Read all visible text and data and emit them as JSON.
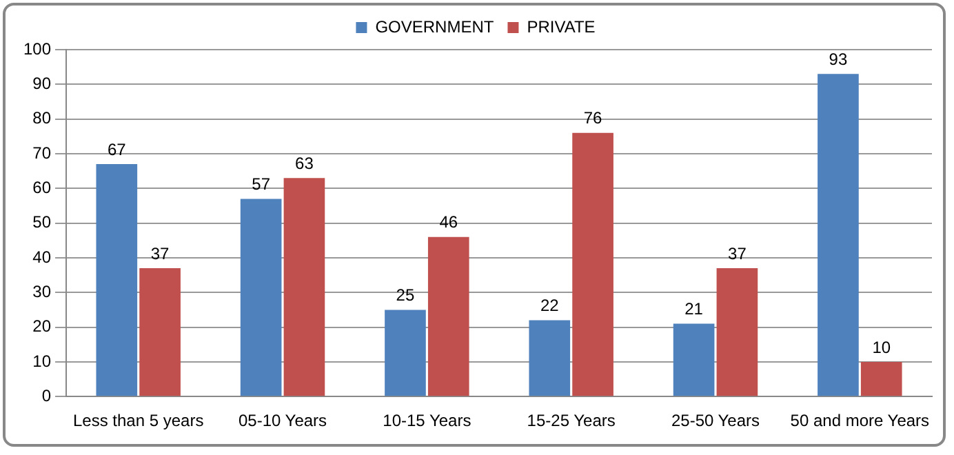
{
  "chart_data": {
    "type": "bar",
    "categories": [
      "Less than 5 years",
      "05-10 Years",
      "10-15 Years",
      "15-25 Years",
      "25-50 Years",
      "50 and more Years"
    ],
    "series": [
      {
        "name": "GOVERNMENT",
        "color": "#4f81bd",
        "values": [
          67,
          57,
          25,
          22,
          21,
          93
        ]
      },
      {
        "name": "PRIVATE",
        "color": "#c0504d",
        "values": [
          37,
          63,
          46,
          76,
          37,
          10
        ]
      }
    ],
    "ylim": [
      0,
      100
    ],
    "yticks": [
      0,
      10,
      20,
      30,
      40,
      50,
      60,
      70,
      80,
      90,
      100
    ],
    "grid": "y",
    "legend": "top",
    "data_labels": true
  }
}
